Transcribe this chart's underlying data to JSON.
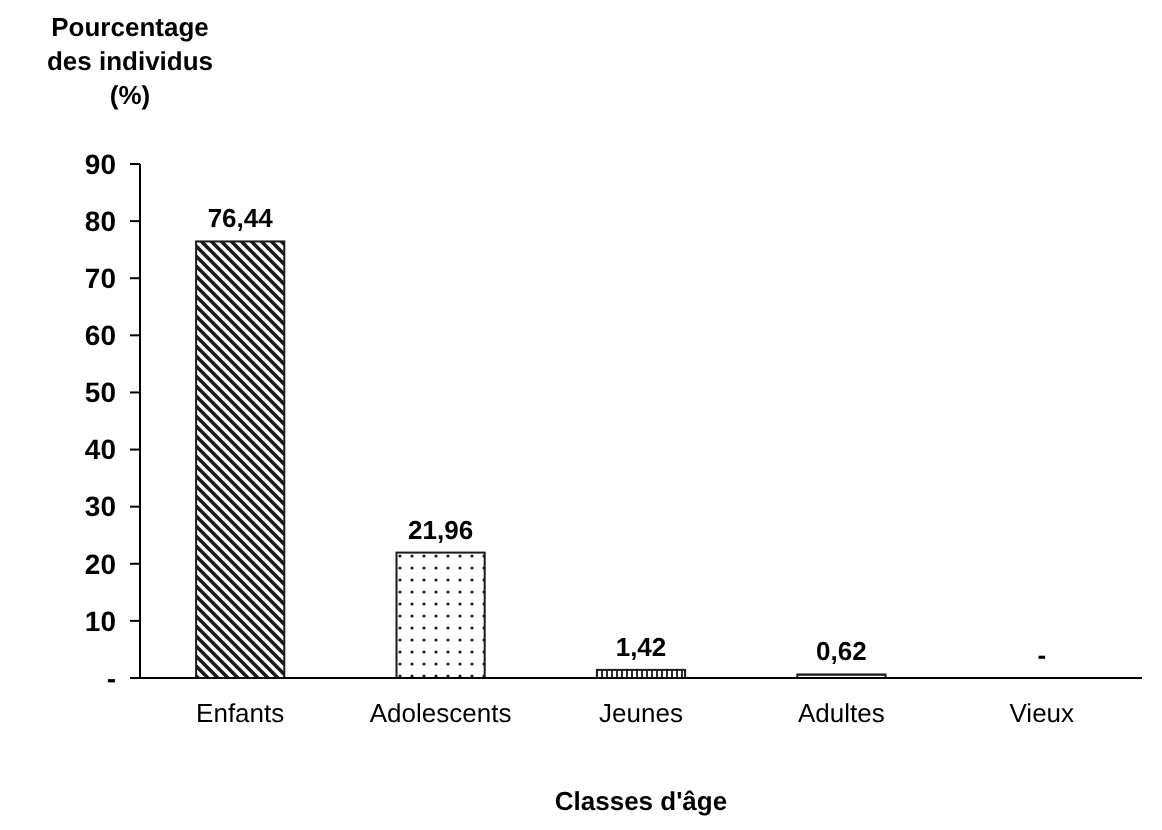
{
  "chart_data": {
    "type": "bar",
    "ylabel": "Pourcentage des individus (%)",
    "xlabel": "Classes d'âge",
    "categories": [
      "Enfants",
      "Adolescents",
      "Jeunes",
      "Adultes",
      "Vieux"
    ],
    "values": [
      76.44,
      21.96,
      1.42,
      0.62,
      0
    ],
    "value_labels": [
      "76,44",
      "21,96",
      "1,42",
      "0,62",
      "-"
    ],
    "color": "#1a1a1a",
    "ylim": [
      0,
      90
    ],
    "yticks": [
      {
        "value": 0,
        "label": "-"
      },
      10,
      20,
      30,
      40,
      50,
      60,
      70,
      80,
      90
    ],
    "grid": false
  }
}
